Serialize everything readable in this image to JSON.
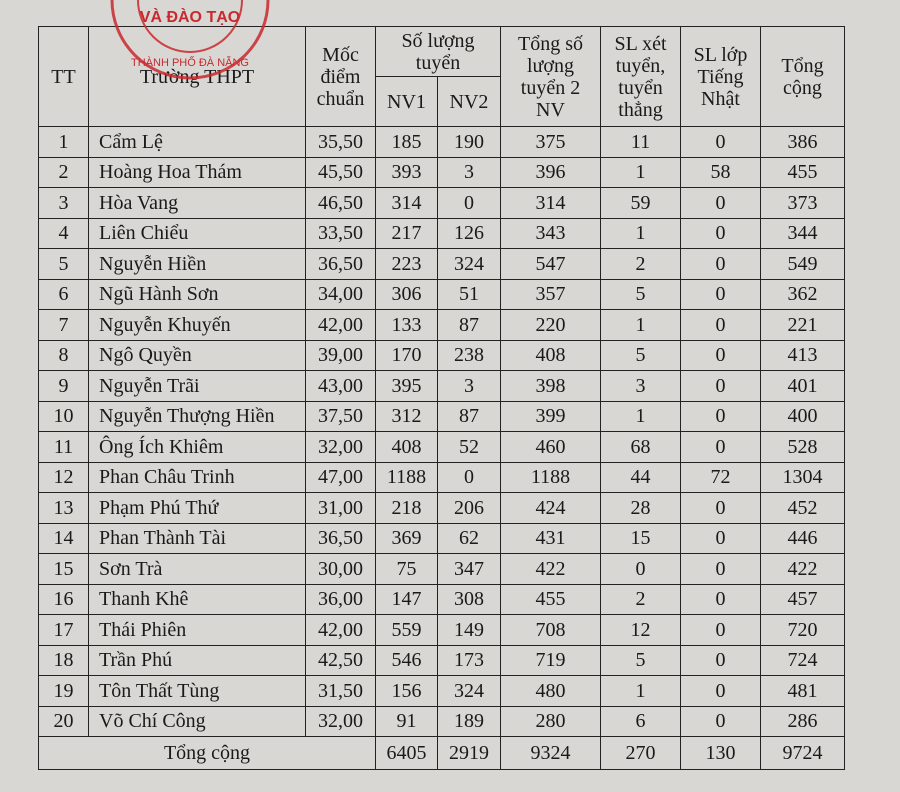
{
  "stamp": {
    "line1": "VÀ ĐÀO TẠO",
    "line2": "THÀNH PHỐ ĐÀ NẴNG"
  },
  "table": {
    "header": {
      "tt": "TT",
      "school": "Trường THPT",
      "score": "Mốc điểm chuẩn",
      "quota": "Số lượng tuyển",
      "nv1": "NV1",
      "nv2": "NV2",
      "total2": "Tổng số lượng tuyển 2 NV",
      "direct": "SL xét tuyển, tuyển thẳng",
      "japanese": "SL lớp Tiếng Nhật",
      "grand": "Tổng cộng"
    },
    "rows": [
      [
        "1",
        "Cẩm Lệ",
        "35,50",
        "185",
        "190",
        "375",
        "11",
        "0",
        "386"
      ],
      [
        "2",
        "Hoàng Hoa Thám",
        "45,50",
        "393",
        "3",
        "396",
        "1",
        "58",
        "455"
      ],
      [
        "3",
        "Hòa Vang",
        "46,50",
        "314",
        "0",
        "314",
        "59",
        "0",
        "373"
      ],
      [
        "4",
        "Liên Chiểu",
        "33,50",
        "217",
        "126",
        "343",
        "1",
        "0",
        "344"
      ],
      [
        "5",
        "Nguyễn Hiền",
        "36,50",
        "223",
        "324",
        "547",
        "2",
        "0",
        "549"
      ],
      [
        "6",
        "Ngũ Hành Sơn",
        "34,00",
        "306",
        "51",
        "357",
        "5",
        "0",
        "362"
      ],
      [
        "7",
        "Nguyễn Khuyến",
        "42,00",
        "133",
        "87",
        "220",
        "1",
        "0",
        "221"
      ],
      [
        "8",
        "Ngô Quyền",
        "39,00",
        "170",
        "238",
        "408",
        "5",
        "0",
        "413"
      ],
      [
        "9",
        "Nguyễn Trãi",
        "43,00",
        "395",
        "3",
        "398",
        "3",
        "0",
        "401"
      ],
      [
        "10",
        "Nguyễn Thượng Hiền",
        "37,50",
        "312",
        "87",
        "399",
        "1",
        "0",
        "400"
      ],
      [
        "11",
        "Ông Ích Khiêm",
        "32,00",
        "408",
        "52",
        "460",
        "68",
        "0",
        "528"
      ],
      [
        "12",
        "Phan Châu Trinh",
        "47,00",
        "1188",
        "0",
        "1188",
        "44",
        "72",
        "1304"
      ],
      [
        "13",
        "Phạm Phú Thứ",
        "31,00",
        "218",
        "206",
        "424",
        "28",
        "0",
        "452"
      ],
      [
        "14",
        "Phan Thành Tài",
        "36,50",
        "369",
        "62",
        "431",
        "15",
        "0",
        "446"
      ],
      [
        "15",
        "Sơn Trà",
        "30,00",
        "75",
        "347",
        "422",
        "0",
        "0",
        "422"
      ],
      [
        "16",
        "Thanh Khê",
        "36,00",
        "147",
        "308",
        "455",
        "2",
        "0",
        "457"
      ],
      [
        "17",
        "Thái Phiên",
        "42,00",
        "559",
        "149",
        "708",
        "12",
        "0",
        "720"
      ],
      [
        "18",
        "Trần Phú",
        "42,50",
        "546",
        "173",
        "719",
        "5",
        "0",
        "724"
      ],
      [
        "19",
        "Tôn Thất Tùng",
        "31,50",
        "156",
        "324",
        "480",
        "1",
        "0",
        "481"
      ],
      [
        "20",
        "Võ Chí Công",
        "32,00",
        "91",
        "189",
        "280",
        "6",
        "0",
        "286"
      ]
    ],
    "total": [
      "Tổng cộng",
      "6405",
      "2919",
      "9324",
      "270",
      "130",
      "9724"
    ]
  }
}
